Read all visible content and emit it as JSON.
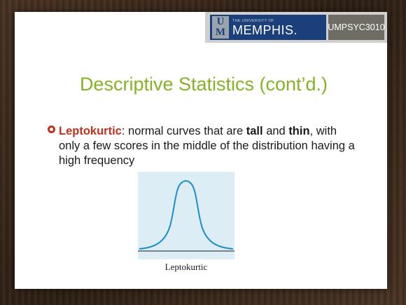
{
  "header": {
    "logo_mark_top": "U",
    "logo_mark_bottom": "M",
    "logo_small": "THE UNIVERSITY OF",
    "logo_main": "MEMPHIS.",
    "course_code": "UMPSYC3010"
  },
  "slide": {
    "title": "Descriptive Statistics (cont’d.)",
    "bullet": {
      "term": "Leptokurtic",
      "text_1": ": normal curves that are ",
      "bold_1": "tall",
      "text_2": " and ",
      "bold_2": "thin",
      "text_3": ", with only a few scores in the middle of the distribution having a high frequency"
    },
    "figure_caption": "Leptokurtic"
  },
  "colors": {
    "title_green": "#86b325",
    "term_red": "#c0311e",
    "curve_blue": "#1a8fd0",
    "figure_bg": "#dcedf5",
    "logo_blue": "#1b3f7b"
  }
}
